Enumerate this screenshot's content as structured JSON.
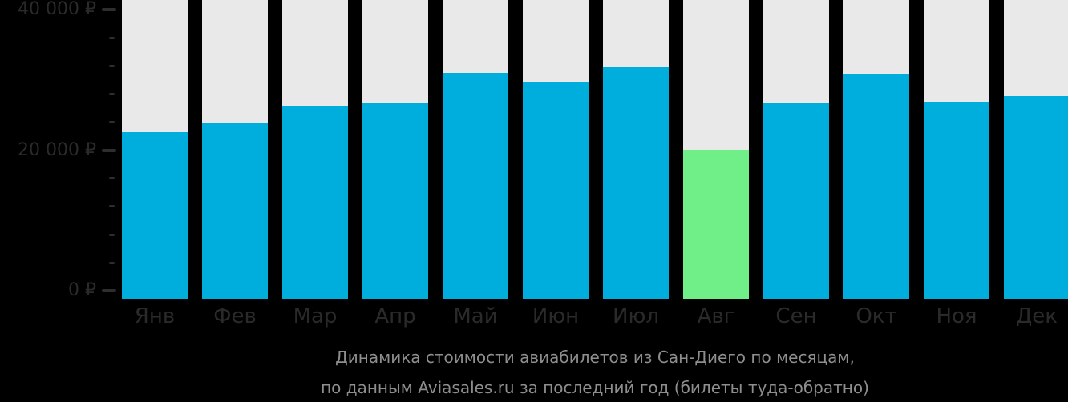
{
  "chart_data": {
    "type": "bar",
    "title_lines": [
      "Динамика стоимости авиабилетов из Сан-Диего по месяцам,",
      "по данным Aviasales.ru за последний год (билеты туда-обратно)"
    ],
    "categories": [
      "Янв",
      "Фев",
      "Мар",
      "Апр",
      "Май",
      "Июн",
      "Июл",
      "Авг",
      "Сен",
      "Окт",
      "Ноя",
      "Дек"
    ],
    "values": [
      22600,
      23800,
      26400,
      26700,
      31000,
      29800,
      31800,
      20100,
      26800,
      30800,
      26900,
      27700
    ],
    "highlight_index": 7,
    "highlight_meaning": "cheapest-month",
    "currency": "₽",
    "y_ticks": [
      {
        "value": 0,
        "label": "0 ₽"
      },
      {
        "value": 20000,
        "label": "20 000 ₽"
      },
      {
        "value": 40000,
        "label": "40 000 ₽"
      }
    ],
    "minor_tick_step": 4000,
    "ylim": [
      0,
      41500
    ],
    "grid": false,
    "legend": "none",
    "colors": {
      "bar": "#00aedd",
      "bar_highlight": "#70ee88",
      "track": "#e9e9e9",
      "axis_text": "#2a2a2a",
      "tick": "#2e2e2e",
      "title_text": "#8e8e8e",
      "background": "#000000"
    }
  }
}
